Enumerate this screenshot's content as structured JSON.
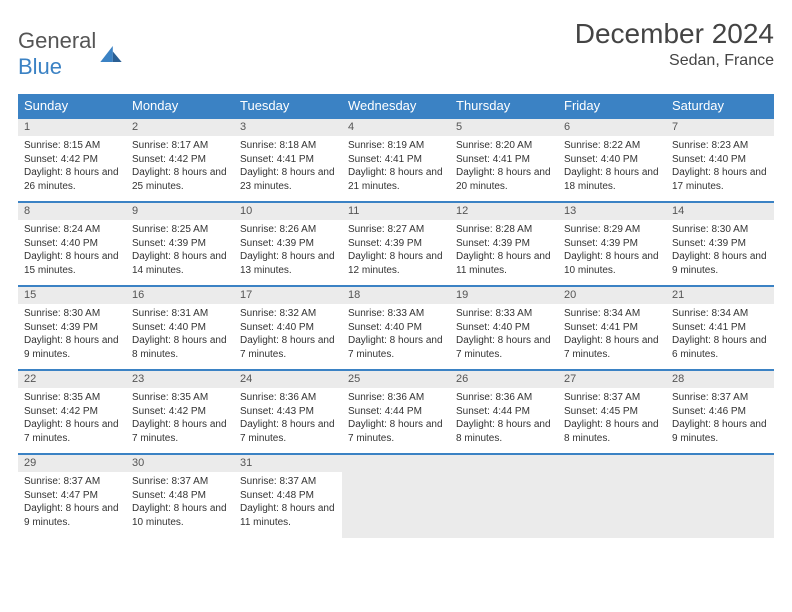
{
  "brand": {
    "general": "General",
    "blue": "Blue"
  },
  "title": "December 2024",
  "location": "Sedan, France",
  "columns": [
    "Sunday",
    "Monday",
    "Tuesday",
    "Wednesday",
    "Thursday",
    "Friday",
    "Saturday"
  ],
  "colors": {
    "header_bg": "#3b82c4",
    "header_text": "#ffffff",
    "daynum_bg": "#ebebeb",
    "border": "#3b82c4",
    "text": "#333333",
    "page_bg": "#ffffff"
  },
  "fonts": {
    "title_size": 28,
    "location_size": 16,
    "header_size": 13,
    "daynum_size": 11,
    "body_size": 10
  },
  "weeks": [
    [
      {
        "day": "1",
        "sunrise": "8:15 AM",
        "sunset": "4:42 PM",
        "daylight": "8 hours and 26 minutes."
      },
      {
        "day": "2",
        "sunrise": "8:17 AM",
        "sunset": "4:42 PM",
        "daylight": "8 hours and 25 minutes."
      },
      {
        "day": "3",
        "sunrise": "8:18 AM",
        "sunset": "4:41 PM",
        "daylight": "8 hours and 23 minutes."
      },
      {
        "day": "4",
        "sunrise": "8:19 AM",
        "sunset": "4:41 PM",
        "daylight": "8 hours and 21 minutes."
      },
      {
        "day": "5",
        "sunrise": "8:20 AM",
        "sunset": "4:41 PM",
        "daylight": "8 hours and 20 minutes."
      },
      {
        "day": "6",
        "sunrise": "8:22 AM",
        "sunset": "4:40 PM",
        "daylight": "8 hours and 18 minutes."
      },
      {
        "day": "7",
        "sunrise": "8:23 AM",
        "sunset": "4:40 PM",
        "daylight": "8 hours and 17 minutes."
      }
    ],
    [
      {
        "day": "8",
        "sunrise": "8:24 AM",
        "sunset": "4:40 PM",
        "daylight": "8 hours and 15 minutes."
      },
      {
        "day": "9",
        "sunrise": "8:25 AM",
        "sunset": "4:39 PM",
        "daylight": "8 hours and 14 minutes."
      },
      {
        "day": "10",
        "sunrise": "8:26 AM",
        "sunset": "4:39 PM",
        "daylight": "8 hours and 13 minutes."
      },
      {
        "day": "11",
        "sunrise": "8:27 AM",
        "sunset": "4:39 PM",
        "daylight": "8 hours and 12 minutes."
      },
      {
        "day": "12",
        "sunrise": "8:28 AM",
        "sunset": "4:39 PM",
        "daylight": "8 hours and 11 minutes."
      },
      {
        "day": "13",
        "sunrise": "8:29 AM",
        "sunset": "4:39 PM",
        "daylight": "8 hours and 10 minutes."
      },
      {
        "day": "14",
        "sunrise": "8:30 AM",
        "sunset": "4:39 PM",
        "daylight": "8 hours and 9 minutes."
      }
    ],
    [
      {
        "day": "15",
        "sunrise": "8:30 AM",
        "sunset": "4:39 PM",
        "daylight": "8 hours and 9 minutes."
      },
      {
        "day": "16",
        "sunrise": "8:31 AM",
        "sunset": "4:40 PM",
        "daylight": "8 hours and 8 minutes."
      },
      {
        "day": "17",
        "sunrise": "8:32 AM",
        "sunset": "4:40 PM",
        "daylight": "8 hours and 7 minutes."
      },
      {
        "day": "18",
        "sunrise": "8:33 AM",
        "sunset": "4:40 PM",
        "daylight": "8 hours and 7 minutes."
      },
      {
        "day": "19",
        "sunrise": "8:33 AM",
        "sunset": "4:40 PM",
        "daylight": "8 hours and 7 minutes."
      },
      {
        "day": "20",
        "sunrise": "8:34 AM",
        "sunset": "4:41 PM",
        "daylight": "8 hours and 7 minutes."
      },
      {
        "day": "21",
        "sunrise": "8:34 AM",
        "sunset": "4:41 PM",
        "daylight": "8 hours and 6 minutes."
      }
    ],
    [
      {
        "day": "22",
        "sunrise": "8:35 AM",
        "sunset": "4:42 PM",
        "daylight": "8 hours and 7 minutes."
      },
      {
        "day": "23",
        "sunrise": "8:35 AM",
        "sunset": "4:42 PM",
        "daylight": "8 hours and 7 minutes."
      },
      {
        "day": "24",
        "sunrise": "8:36 AM",
        "sunset": "4:43 PM",
        "daylight": "8 hours and 7 minutes."
      },
      {
        "day": "25",
        "sunrise": "8:36 AM",
        "sunset": "4:44 PM",
        "daylight": "8 hours and 7 minutes."
      },
      {
        "day": "26",
        "sunrise": "8:36 AM",
        "sunset": "4:44 PM",
        "daylight": "8 hours and 8 minutes."
      },
      {
        "day": "27",
        "sunrise": "8:37 AM",
        "sunset": "4:45 PM",
        "daylight": "8 hours and 8 minutes."
      },
      {
        "day": "28",
        "sunrise": "8:37 AM",
        "sunset": "4:46 PM",
        "daylight": "8 hours and 9 minutes."
      }
    ],
    [
      {
        "day": "29",
        "sunrise": "8:37 AM",
        "sunset": "4:47 PM",
        "daylight": "8 hours and 9 minutes."
      },
      {
        "day": "30",
        "sunrise": "8:37 AM",
        "sunset": "4:48 PM",
        "daylight": "8 hours and 10 minutes."
      },
      {
        "day": "31",
        "sunrise": "8:37 AM",
        "sunset": "4:48 PM",
        "daylight": "8 hours and 11 minutes."
      },
      null,
      null,
      null,
      null
    ]
  ]
}
